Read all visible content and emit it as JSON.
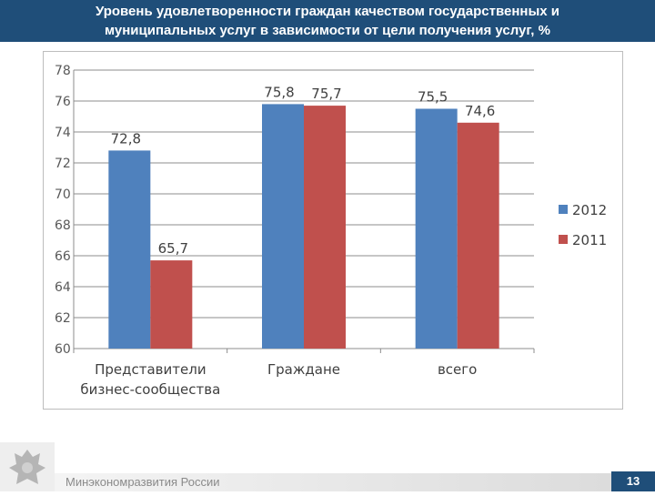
{
  "header": {
    "title_line1": "Уровень удовлетворенности граждан качеством государственных и",
    "title_line2": "муниципальных услуг в зависимости от цели получения услуг, %"
  },
  "footer": {
    "ministry": "Минэкономразвития России",
    "page_number": "13"
  },
  "chart_data": {
    "type": "bar",
    "categories": [
      [
        "Представители",
        "бизнес-сообщества"
      ],
      [
        "Граждане"
      ],
      [
        "всего"
      ]
    ],
    "series": [
      {
        "name": "2012",
        "color": "#4f81bd",
        "values": [
          72.8,
          75.8,
          75.5
        ],
        "labels": [
          "72,8",
          "75,8",
          "75,5"
        ]
      },
      {
        "name": "2011",
        "color": "#c0504d",
        "values": [
          65.7,
          75.7,
          74.6
        ],
        "labels": [
          "65,7",
          "75,7",
          "74,6"
        ]
      }
    ],
    "ylim": [
      60,
      78
    ],
    "yticks": [
      60,
      62,
      64,
      66,
      68,
      70,
      72,
      74,
      76,
      78
    ],
    "grid": true,
    "legend_position": "right"
  }
}
